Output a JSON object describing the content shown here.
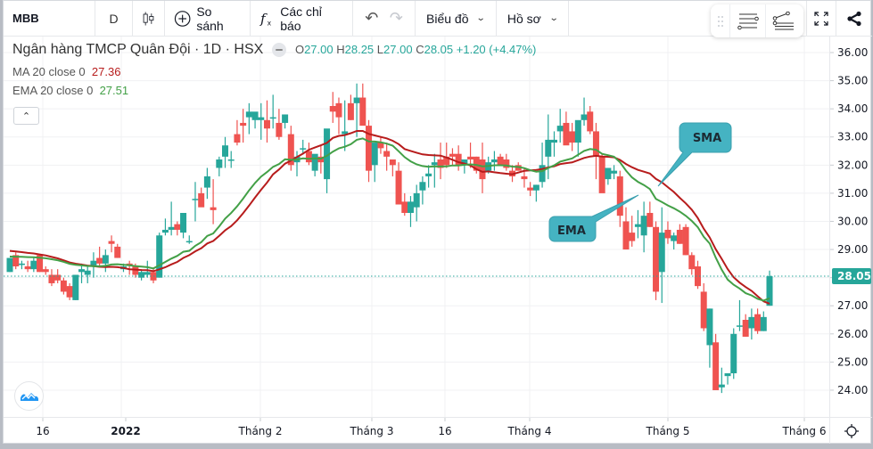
{
  "toolbar": {
    "symbol": "MBB",
    "interval": "D",
    "chart_type_icon": "candlestick-icon",
    "compare_label": "So sánh",
    "indicators_label": "Các chỉ báo",
    "chart_menu_label": "Biểu đồ",
    "profile_menu_label": "Hồ sơ"
  },
  "legend": {
    "title": "Ngân hàng TMCP Quân Đội · 1D · HSX",
    "open_label": "O",
    "open": "27.00",
    "high_label": "H",
    "high": "28.25",
    "low_label": "L",
    "low": "27.00",
    "close_label": "C",
    "close": "28.05",
    "change": "+1.20 (+4.47%)",
    "ma_label": "MA 20 close 0",
    "ma_value": "27.36",
    "ema_label": "EMA 20 close 0",
    "ema_value": "27.51"
  },
  "colors": {
    "up": "#26a69a",
    "down": "#ef5350",
    "ma_line": "#b71c1c",
    "ema_line": "#43a047",
    "callout": "#45b3c2",
    "price_tag": "#26a69a"
  },
  "annotations": {
    "sma_label": "SMA",
    "ema_label": "EMA"
  },
  "price_axis": {
    "ticks": [
      "36.00",
      "35.00",
      "34.00",
      "33.00",
      "32.00",
      "31.00",
      "30.00",
      "29.00",
      "28.00",
      "27.00",
      "26.00",
      "25.00",
      "24.00"
    ],
    "last_price": "28.05"
  },
  "time_axis": {
    "ticks": [
      "16",
      "2022",
      "Tháng 2",
      "Tháng 3",
      "16",
      "Tháng 4",
      "Tháng 5",
      "Tháng 6"
    ]
  },
  "chart_data": {
    "type": "candlestick",
    "title": "Ngân hàng TMCP Quân Đội · 1D · HSX",
    "symbol": "MBB",
    "xlabel": "",
    "ylabel": "",
    "ylim": [
      23.5,
      36.2
    ],
    "grid": true,
    "x_ticks": [
      "16",
      "2022",
      "Tháng 2",
      "Tháng 3",
      "16",
      "Tháng 4",
      "Tháng 5",
      "Tháng 6"
    ],
    "y_ticks": [
      24,
      25,
      26,
      27,
      28,
      29,
      30,
      31,
      32,
      33,
      34,
      35,
      36
    ],
    "last_ohlc": {
      "open": 27.0,
      "high": 28.25,
      "low": 27.0,
      "close": 28.05,
      "change": 1.2,
      "change_pct": 4.47
    },
    "candles": [
      [
        28.2,
        28.7,
        28.2,
        28.7
      ],
      [
        28.8,
        28.9,
        28.3,
        28.4
      ],
      [
        28.45,
        28.6,
        28.3,
        28.5
      ],
      [
        28.4,
        28.6,
        28.2,
        28.3
      ],
      [
        28.3,
        28.7,
        28.2,
        28.6
      ],
      [
        28.8,
        28.8,
        28.2,
        28.2
      ],
      [
        28.3,
        28.4,
        28.1,
        28.2
      ],
      [
        28.1,
        28.3,
        27.7,
        27.8
      ],
      [
        28.1,
        28.3,
        27.8,
        27.9
      ],
      [
        27.9,
        28.0,
        27.4,
        27.5
      ],
      [
        27.7,
        27.8,
        27.2,
        27.3
      ],
      [
        27.2,
        28.1,
        27.2,
        28.1
      ],
      [
        28.2,
        28.5,
        27.8,
        28.3
      ],
      [
        28.1,
        28.4,
        27.8,
        28.25
      ],
      [
        28.4,
        28.9,
        28.0,
        28.6
      ],
      [
        28.7,
        29.1,
        28.4,
        28.5
      ],
      [
        28.5,
        29.0,
        28.2,
        28.8
      ],
      [
        29.3,
        29.5,
        28.9,
        29.2
      ],
      [
        29.1,
        29.2,
        28.7,
        28.7
      ],
      [
        28.3,
        28.5,
        28.2,
        28.4
      ],
      [
        28.5,
        28.6,
        28.1,
        28.45
      ],
      [
        28.4,
        28.5,
        28.0,
        28.1
      ],
      [
        28.0,
        28.3,
        27.9,
        28.2
      ],
      [
        28.1,
        28.6,
        28.0,
        28.2
      ],
      [
        28.2,
        28.3,
        27.8,
        27.9
      ],
      [
        28.0,
        29.6,
        28.0,
        29.5
      ],
      [
        29.6,
        30.1,
        29.5,
        29.7
      ],
      [
        29.7,
        30.7,
        29.5,
        29.8
      ],
      [
        29.9,
        30.0,
        29.5,
        29.7
      ],
      [
        29.6,
        30.3,
        29.4,
        30.3
      ],
      [
        29.3,
        29.5,
        29.2,
        29.3
      ],
      [
        30.8,
        31.4,
        30.0,
        30.8
      ],
      [
        31.0,
        31.2,
        30.6,
        30.5
      ],
      [
        31.2,
        31.9,
        30.8,
        31.6
      ],
      [
        30.5,
        31.5,
        29.9,
        30.4
      ],
      [
        31.9,
        32.3,
        31.6,
        32.2
      ],
      [
        32.3,
        33.0,
        31.9,
        32.7
      ],
      [
        32.2,
        32.5,
        31.9,
        32.2
      ],
      [
        33.1,
        33.6,
        32.7,
        32.8
      ],
      [
        33.5,
        34.0,
        32.8,
        33.4
      ],
      [
        33.7,
        34.2,
        33.1,
        33.9
      ],
      [
        33.6,
        33.8,
        33.3,
        33.9
      ],
      [
        33.6,
        34.2,
        32.9,
        33.7
      ],
      [
        33.6,
        34.3,
        32.8,
        33.3
      ],
      [
        33.7,
        34.5,
        33.3,
        33.7
      ],
      [
        33.5,
        34.0,
        32.9,
        33.0
      ],
      [
        33.5,
        33.8,
        33.3,
        33.8
      ],
      [
        33.1,
        33.4,
        31.8,
        32.0
      ],
      [
        32.1,
        32.5,
        31.6,
        32.3
      ],
      [
        32.6,
        32.9,
        32.4,
        32.6
      ],
      [
        32.5,
        32.8,
        32.0,
        32.1
      ],
      [
        31.8,
        32.2,
        31.6,
        32.4
      ],
      [
        32.3,
        32.7,
        31.7,
        32.1
      ],
      [
        31.5,
        33.2,
        31.0,
        33.3
      ],
      [
        34.1,
        34.6,
        33.5,
        33.9
      ],
      [
        34.2,
        34.4,
        33.1,
        33.7
      ],
      [
        33.1,
        34.3,
        32.5,
        33.2
      ],
      [
        34.2,
        34.5,
        33.6,
        33.6
      ],
      [
        34.2,
        34.9,
        33.0,
        34.4
      ],
      [
        34.4,
        34.9,
        33.5,
        33.4
      ],
      [
        33.4,
        33.6,
        31.4,
        31.8
      ],
      [
        32.0,
        32.7,
        31.4,
        32.8
      ],
      [
        32.8,
        33.0,
        32.4,
        32.6
      ],
      [
        32.5,
        32.8,
        31.8,
        32.3
      ],
      [
        32.2,
        32.2,
        31.6,
        32.0
      ],
      [
        31.8,
        32.1,
        30.8,
        30.6
      ],
      [
        30.7,
        31.0,
        30.2,
        30.3
      ],
      [
        30.3,
        30.9,
        29.8,
        30.7
      ],
      [
        30.5,
        31.3,
        30.0,
        31.0
      ],
      [
        31.1,
        31.6,
        30.6,
        31.4
      ],
      [
        31.6,
        32.0,
        31.2,
        31.7
      ],
      [
        32.0,
        32.4,
        31.2,
        32.1
      ],
      [
        32.2,
        32.8,
        31.5,
        31.9
      ],
      [
        32.3,
        32.8,
        31.9,
        32.0
      ],
      [
        32.4,
        32.6,
        32.0,
        32.3
      ],
      [
        32.4,
        32.7,
        31.8,
        32.0
      ],
      [
        32.0,
        32.2,
        31.7,
        32.2
      ],
      [
        32.3,
        32.8,
        31.9,
        32.2
      ],
      [
        32.3,
        32.3,
        31.7,
        31.8
      ],
      [
        32.2,
        32.8,
        31.0,
        31.5
      ],
      [
        31.8,
        32.3,
        31.7,
        32.1
      ],
      [
        32.1,
        32.5,
        31.8,
        32.2
      ],
      [
        32.3,
        32.4,
        32.0,
        32.0
      ],
      [
        32.2,
        32.4,
        31.8,
        31.9
      ],
      [
        31.8,
        32.0,
        31.4,
        31.6
      ],
      [
        32.0,
        32.1,
        31.8,
        31.8
      ],
      [
        31.6,
        31.9,
        31.2,
        31.5
      ],
      [
        31.2,
        31.4,
        30.9,
        31.1
      ],
      [
        31.1,
        31.3,
        30.7,
        31.3
      ],
      [
        31.4,
        32.8,
        31.2,
        32.0
      ],
      [
        32.3,
        33.8,
        31.5,
        32.9
      ],
      [
        32.8,
        33.2,
        32.3,
        32.9
      ],
      [
        33.2,
        34.0,
        32.8,
        33.4
      ],
      [
        33.5,
        33.9,
        32.9,
        32.7
      ],
      [
        33.2,
        33.5,
        32.5,
        32.8
      ],
      [
        32.8,
        33.5,
        32.3,
        33.6
      ],
      [
        33.6,
        34.4,
        33.4,
        33.8
      ],
      [
        33.9,
        34.1,
        33.1,
        33.2
      ],
      [
        33.2,
        33.5,
        31.5,
        32.3
      ],
      [
        32.3,
        32.4,
        31.4,
        31.0
      ],
      [
        31.5,
        31.8,
        31.3,
        31.9
      ],
      [
        31.7,
        32.0,
        31.5,
        31.8
      ],
      [
        31.6,
        31.8,
        29.8,
        30.2
      ],
      [
        30.0,
        30.5,
        29.0,
        29.0
      ],
      [
        29.6,
        30.2,
        29.1,
        29.3
      ],
      [
        29.8,
        30.4,
        29.4,
        29.9
      ],
      [
        29.5,
        30.7,
        28.9,
        30.2
      ],
      [
        30.3,
        30.7,
        29.8,
        29.8
      ],
      [
        29.8,
        30.0,
        27.2,
        27.5
      ],
      [
        28.2,
        30.5,
        27.1,
        29.6
      ],
      [
        29.7,
        30.0,
        29.2,
        29.4
      ],
      [
        29.3,
        29.6,
        29.0,
        29.5
      ],
      [
        29.7,
        29.9,
        29.2,
        29.2
      ],
      [
        29.8,
        29.9,
        28.8,
        28.8
      ],
      [
        28.8,
        28.9,
        28.1,
        28.3
      ],
      [
        28.4,
        28.6,
        27.6,
        27.7
      ],
      [
        27.5,
        27.8,
        26.1,
        26.2
      ],
      [
        25.6,
        26.9,
        24.8,
        26.9
      ],
      [
        25.7,
        26.0,
        24.1,
        24.0
      ],
      [
        24.1,
        24.8,
        23.9,
        24.2
      ],
      [
        24.5,
        24.5,
        24.2,
        24.6
      ],
      [
        24.6,
        26.2,
        24.4,
        26.0
      ],
      [
        26.3,
        27.2,
        26.1,
        26.3
      ],
      [
        26.5,
        26.7,
        25.9,
        25.9
      ],
      [
        26.2,
        26.9,
        25.8,
        26.6
      ],
      [
        26.7,
        26.9,
        26.0,
        26.1
      ],
      [
        26.1,
        26.8,
        26.1,
        26.6
      ],
      [
        27.0,
        28.25,
        27.0,
        28.05
      ]
    ],
    "series": [
      {
        "name": "MA 20 close 0",
        "last": 27.36
      },
      {
        "name": "EMA 20 close 0",
        "last": 27.51
      }
    ]
  }
}
